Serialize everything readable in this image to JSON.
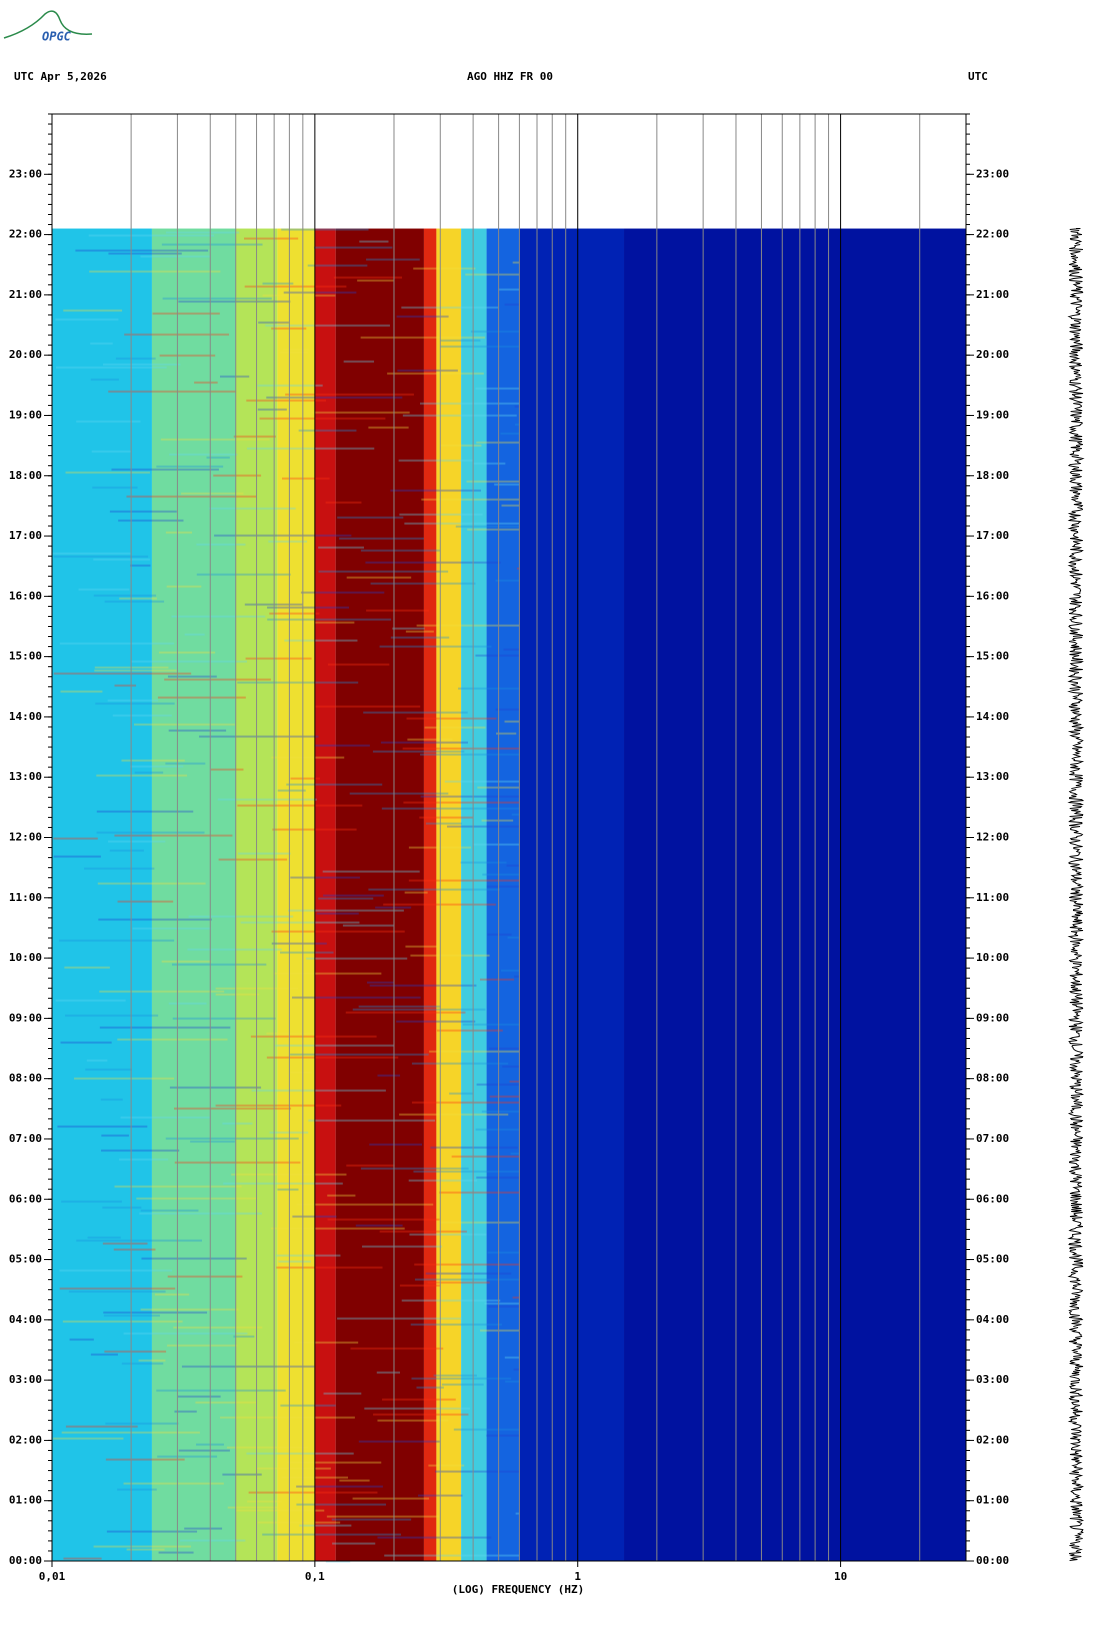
{
  "logo": "OPGC",
  "chart_data": {
    "type": "spectrogram",
    "header_left": "UTC  Apr 5,2026",
    "title": "AGO HHZ FR 00",
    "header_right": "UTC",
    "x_label": "(LOG) FREQUENCY (HZ)",
    "log_x": true,
    "xlim": [
      0.01,
      30
    ],
    "xticks": [
      {
        "value": 0.01,
        "label": "0,01"
      },
      {
        "value": 0.1,
        "label": "0,1"
      },
      {
        "value": 1,
        "label": "1"
      },
      {
        "value": 10,
        "label": "10"
      }
    ],
    "xgrid_minor": [
      0.02,
      0.03,
      0.04,
      0.05,
      0.06,
      0.07,
      0.08,
      0.09,
      0.2,
      0.3,
      0.4,
      0.5,
      0.6,
      0.7,
      0.8,
      0.9,
      2,
      3,
      4,
      5,
      6,
      7,
      8,
      9,
      20
    ],
    "ylim": [
      0,
      24
    ],
    "yticks": [
      {
        "value": 0,
        "label": "00:00"
      },
      {
        "value": 1,
        "label": "01:00"
      },
      {
        "value": 2,
        "label": "02:00"
      },
      {
        "value": 3,
        "label": "03:00"
      },
      {
        "value": 4,
        "label": "04:00"
      },
      {
        "value": 5,
        "label": "05:00"
      },
      {
        "value": 6,
        "label": "06:00"
      },
      {
        "value": 7,
        "label": "07:00"
      },
      {
        "value": 8,
        "label": "08:00"
      },
      {
        "value": 9,
        "label": "09:00"
      },
      {
        "value": 10,
        "label": "10:00"
      },
      {
        "value": 11,
        "label": "11:00"
      },
      {
        "value": 12,
        "label": "12:00"
      },
      {
        "value": 13,
        "label": "13:00"
      },
      {
        "value": 14,
        "label": "14:00"
      },
      {
        "value": 15,
        "label": "15:00"
      },
      {
        "value": 16,
        "label": "16:00"
      },
      {
        "value": 17,
        "label": "17:00"
      },
      {
        "value": 18,
        "label": "18:00"
      },
      {
        "value": 19,
        "label": "19:00"
      },
      {
        "value": 20,
        "label": "20:00"
      },
      {
        "value": 21,
        "label": "21:00"
      },
      {
        "value": 22,
        "label": "22:00"
      },
      {
        "value": 23,
        "label": "23:00"
      }
    ],
    "data_end": 22.1,
    "bands": [
      {
        "from": 0.01,
        "to": 0.024,
        "color": "#20c4e8"
      },
      {
        "from": 0.024,
        "to": 0.05,
        "color": "#70dca0"
      },
      {
        "from": 0.05,
        "to": 0.072,
        "color": "#b4e458"
      },
      {
        "from": 0.072,
        "to": 0.1,
        "color": "#eee030"
      },
      {
        "from": 0.1,
        "to": 0.12,
        "color": "#c81010"
      },
      {
        "from": 0.12,
        "to": 0.26,
        "color": "#800000"
      },
      {
        "from": 0.26,
        "to": 0.29,
        "color": "#e02810"
      },
      {
        "from": 0.29,
        "to": 0.36,
        "color": "#f6d428"
      },
      {
        "from": 0.36,
        "to": 0.45,
        "color": "#40cce0"
      },
      {
        "from": 0.45,
        "to": 0.6,
        "color": "#1464e0"
      },
      {
        "from": 0.6,
        "to": 1.5,
        "color": "#0022b4"
      },
      {
        "from": 1.5,
        "to": 30,
        "color": "#0012a0"
      }
    ]
  }
}
